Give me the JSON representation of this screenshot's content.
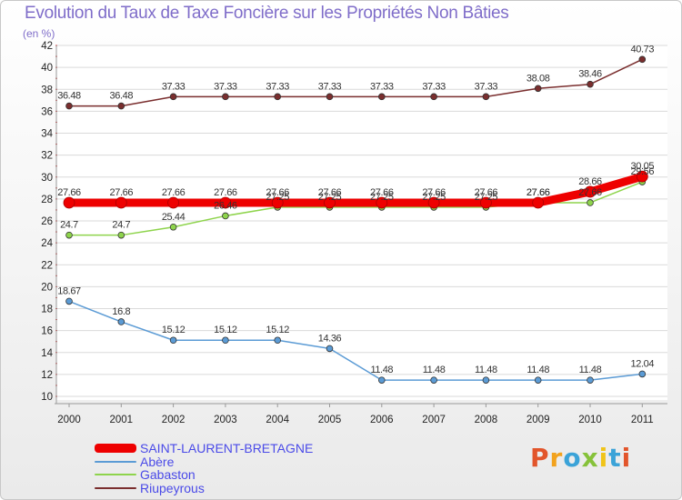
{
  "chart_data": {
    "type": "line",
    "title": "Evolution du Taux de Taxe Foncière sur les Propriétés Non Bâties",
    "subtitle": "(en %)",
    "xlabel": "",
    "ylabel": "",
    "ylim": [
      10,
      42
    ],
    "yticks": [
      "10",
      "12",
      "14",
      "16",
      "18",
      "20",
      "22",
      "24",
      "26",
      "28",
      "30",
      "32",
      "34",
      "36",
      "38",
      "40",
      "42"
    ],
    "categories": [
      "2000",
      "2001",
      "2002",
      "2003",
      "2004",
      "2005",
      "2006",
      "2007",
      "2008",
      "2009",
      "2010",
      "2011"
    ],
    "grid": "horizontal",
    "legend": "bottom-left",
    "series": [
      {
        "name": "Riupeyrous",
        "color": "#7a2e2e",
        "values": [
          36.48,
          36.48,
          37.33,
          37.33,
          37.33,
          37.33,
          37.33,
          37.33,
          37.33,
          38.08,
          38.46,
          40.73
        ],
        "labels": [
          "36.48",
          "36.48",
          "37.33",
          "37.33",
          "37.33",
          "37.33",
          "37.33",
          "37.33",
          "37.33",
          "38.08",
          "38.46",
          "40.73"
        ]
      },
      {
        "name": "Gabaston",
        "color": "#8ed44c",
        "values": [
          24.7,
          24.7,
          25.44,
          26.46,
          27.25,
          27.25,
          27.25,
          27.25,
          27.25,
          27.66,
          27.66,
          29.56
        ],
        "labels": [
          "24.7",
          "24.7",
          "25.44",
          "26.46",
          "27.25",
          "27.25",
          "27.25",
          "27.25",
          "27.25",
          "27.66",
          "27.66",
          "29.56"
        ]
      },
      {
        "name": "SAINT-LAURENT-BRETAGNE",
        "color": "#ee0000",
        "values": [
          27.66,
          27.66,
          27.66,
          27.66,
          27.66,
          27.66,
          27.66,
          27.66,
          27.66,
          27.66,
          28.66,
          30.05
        ],
        "labels": [
          "27.66",
          "27.66",
          "27.66",
          "27.66",
          "27.66",
          "27.66",
          "27.66",
          "27.66",
          "27.66",
          "27.66",
          "28.66",
          "30.05"
        ]
      },
      {
        "name": "Abère",
        "color": "#5b9bd5",
        "values": [
          18.67,
          16.8,
          15.12,
          15.12,
          15.12,
          14.36,
          11.48,
          11.48,
          11.48,
          11.48,
          11.48,
          12.04
        ],
        "labels": [
          "18.67",
          "16.8",
          "15.12",
          "15.12",
          "15.12",
          "14.36",
          "11.48",
          "11.48",
          "11.48",
          "11.48",
          "11.48",
          "12.04"
        ]
      }
    ]
  },
  "legend": {
    "items": [
      {
        "label": "SAINT-LAURENT-BRETAGNE",
        "color": "#ee0000"
      },
      {
        "label": "Abère",
        "color": "#5b9bd5"
      },
      {
        "label": "Gabaston",
        "color": "#8ed44c"
      },
      {
        "label": "Riupeyrous",
        "color": "#7a2e2e"
      }
    ]
  },
  "logo": {
    "letters": [
      "P",
      "r",
      "o",
      "x",
      "i",
      "t",
      "i"
    ]
  }
}
